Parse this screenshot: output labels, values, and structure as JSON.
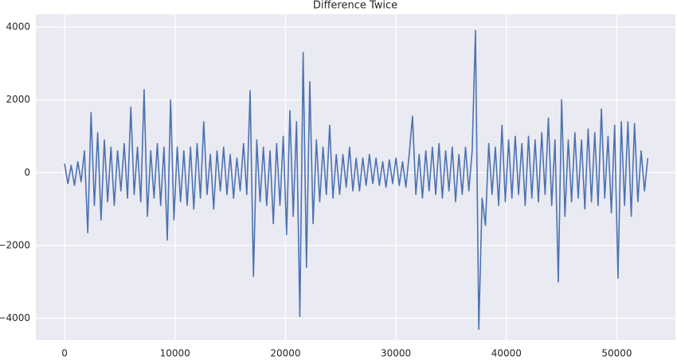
{
  "chart_data": {
    "type": "line",
    "title": "Difference Twice",
    "color": "#4c72b0",
    "grid": true,
    "background": "#eaeaf2",
    "xlim": [
      -2600,
      55300
    ],
    "ylim": [
      -4600,
      4350
    ],
    "xticks": [
      0,
      10000,
      20000,
      30000,
      40000,
      50000
    ],
    "yticks": [
      {
        "value": -4000,
        "label": "−4000"
      },
      {
        "value": -2000,
        "label": "−2000"
      },
      0,
      2000,
      4000
    ],
    "x": [
      0,
      300,
      600,
      900,
      1200,
      1500,
      1800,
      2100,
      2400,
      2700,
      3000,
      3300,
      3600,
      3900,
      4200,
      4500,
      4800,
      5100,
      5400,
      5700,
      6000,
      6300,
      6600,
      6900,
      7200,
      7500,
      7800,
      8100,
      8400,
      8700,
      9000,
      9300,
      9600,
      9900,
      10200,
      10500,
      10800,
      11100,
      11400,
      11700,
      12000,
      12300,
      12600,
      12900,
      13200,
      13500,
      13800,
      14100,
      14400,
      14700,
      15000,
      15300,
      15600,
      15900,
      16200,
      16500,
      16800,
      17100,
      17400,
      17700,
      18000,
      18300,
      18600,
      18900,
      19200,
      19500,
      19800,
      20100,
      20400,
      20700,
      21000,
      21300,
      21600,
      21900,
      22200,
      22500,
      22800,
      23100,
      23400,
      23700,
      24000,
      24300,
      24600,
      24900,
      25200,
      25500,
      25800,
      26100,
      26400,
      26700,
      27000,
      27300,
      27600,
      27900,
      28200,
      28500,
      28800,
      29100,
      29400,
      29700,
      30000,
      30300,
      30600,
      30900,
      31200,
      31500,
      31800,
      32100,
      32400,
      32700,
      33000,
      33300,
      33600,
      33900,
      34200,
      34500,
      34800,
      35100,
      35400,
      35700,
      36000,
      36300,
      36600,
      36900,
      37200,
      37500,
      37800,
      38100,
      38400,
      38700,
      39000,
      39300,
      39600,
      39900,
      40200,
      40500,
      40800,
      41100,
      41400,
      41700,
      42000,
      42300,
      42600,
      42900,
      43200,
      43500,
      43800,
      44100,
      44400,
      44700,
      45000,
      45300,
      45600,
      45900,
      46200,
      46500,
      46800,
      47100,
      47400,
      47700,
      48000,
      48300,
      48600,
      48900,
      49200,
      49500,
      49800,
      50100,
      50400,
      50700,
      51000,
      51300,
      51600,
      51900,
      52200,
      52500,
      52800
    ],
    "values": [
      250,
      -300,
      200,
      -350,
      300,
      -250,
      600,
      -1650,
      1650,
      -900,
      1100,
      -1300,
      900,
      -800,
      700,
      -900,
      600,
      -500,
      800,
      -700,
      1800,
      -600,
      700,
      -800,
      2280,
      -1200,
      600,
      -700,
      800,
      -900,
      700,
      -1850,
      2000,
      -1300,
      700,
      -800,
      600,
      -900,
      700,
      -1000,
      800,
      -700,
      1400,
      -600,
      500,
      -1000,
      600,
      -500,
      700,
      -600,
      500,
      -700,
      400,
      -500,
      800,
      -600,
      2250,
      -2850,
      900,
      -800,
      700,
      -900,
      600,
      -1400,
      800,
      -900,
      1000,
      -1700,
      1700,
      -1200,
      1400,
      -3950,
      3300,
      -2600,
      2500,
      -1400,
      900,
      -800,
      700,
      -600,
      1300,
      -700,
      500,
      -600,
      500,
      -400,
      700,
      -500,
      400,
      -500,
      400,
      -350,
      500,
      -300,
      400,
      -350,
      300,
      -400,
      350,
      -300,
      400,
      -350,
      300,
      -400,
      500,
      1550,
      -600,
      500,
      -700,
      600,
      -500,
      700,
      -600,
      800,
      -700,
      600,
      -500,
      700,
      -800,
      500,
      -600,
      700,
      -500,
      600,
      3900,
      -4300,
      -700,
      -1450,
      800,
      -600,
      700,
      -900,
      1300,
      -800,
      900,
      -700,
      1000,
      -600,
      800,
      -900,
      1000,
      -700,
      900,
      -800,
      1100,
      -600,
      1500,
      -900,
      900,
      -3000,
      2000,
      -1200,
      900,
      -800,
      1100,
      -700,
      900,
      -1000,
      1200,
      -800,
      1100,
      -900,
      1750,
      -700,
      1000,
      -1100,
      1300,
      -2900,
      1400,
      -900,
      1400,
      -1200,
      1350,
      -800,
      600,
      -500,
      400
    ]
  }
}
